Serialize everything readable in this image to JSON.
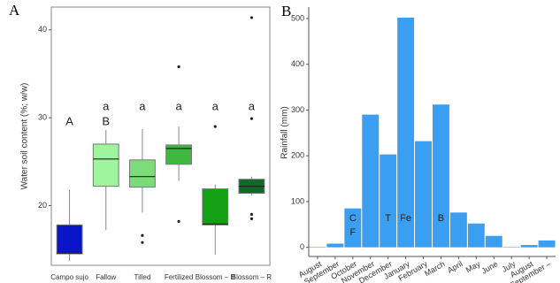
{
  "chart_data": [
    {
      "type": "box",
      "panel_label": "A",
      "y_label": "Water soil content (%; w/w)",
      "ylim": [
        13.2,
        42.6
      ],
      "yticks": [
        20,
        30,
        40
      ],
      "boxes": [
        {
          "name": "Campo sujo",
          "color": "#0a14c8",
          "whisker_low": 13.7,
          "q1": 14.5,
          "median": 14.6,
          "q3": 17.8,
          "whisker_high": 21.8,
          "outliers": [],
          "letter_upper": null,
          "letter_lower": "A"
        },
        {
          "name": "Fallow",
          "color": "#9ef59e",
          "whisker_low": 17.2,
          "q1": 22.2,
          "median": 25.3,
          "q3": 27.0,
          "whisker_high": 28.6,
          "outliers": [],
          "letter_upper": "a",
          "letter_lower": "B"
        },
        {
          "name": "Tilled",
          "color": "#7ddc7a",
          "whisker_low": 19.2,
          "q1": 22.1,
          "median": 23.3,
          "q3": 25.2,
          "whisker_high": 28.7,
          "outliers": [
            16.6,
            15.8
          ],
          "letter_upper": "a",
          "letter_lower": null
        },
        {
          "name": "Fertilized",
          "color": "#3fb83f",
          "whisker_low": 22.8,
          "q1": 24.7,
          "median": 26.5,
          "q3": 26.9,
          "whisker_high": 29.0,
          "outliers": [
            35.8,
            18.2
          ],
          "letter_upper": "a",
          "letter_lower": null
        },
        {
          "name": "Blossom – B",
          "color": "#14a014",
          "whisker_low": 14.4,
          "q1": 17.8,
          "median": 17.9,
          "q3": 21.9,
          "whisker_high": 22.4,
          "outliers": [
            29.0
          ],
          "letter_upper": "a",
          "letter_lower": null
        },
        {
          "name": "Blossom – R",
          "color": "#0d6b2a",
          "whisker_low": 21.2,
          "q1": 21.4,
          "median": 22.2,
          "q3": 23.0,
          "whisker_high": 23.3,
          "outliers": [
            41.4,
            29.9,
            19.0,
            18.5
          ],
          "letter_upper": "a",
          "letter_lower": null
        }
      ]
    },
    {
      "type": "bar",
      "panel_label": "B",
      "y_label": "Rainfall (mm)",
      "color": "#3a9ff0",
      "ylim": [
        -20,
        525
      ],
      "yticks": [
        0,
        100,
        200,
        300,
        400,
        500
      ],
      "categories": [
        "August",
        "September",
        "October",
        "November",
        "December",
        "January",
        "February",
        "March",
        "April",
        "May",
        "June",
        "July",
        "August",
        "September –"
      ],
      "values": [
        1,
        8,
        85,
        290,
        203,
        502,
        232,
        312,
        76,
        52,
        25,
        1,
        5,
        15
      ],
      "labels_upper": [
        null,
        null,
        "C",
        null,
        "T",
        "Fe",
        null,
        "B",
        null,
        null,
        null,
        null,
        null,
        null
      ],
      "labels_lower": [
        null,
        null,
        "F",
        null,
        null,
        null,
        null,
        null,
        null,
        null,
        null,
        null,
        null,
        null
      ]
    }
  ]
}
